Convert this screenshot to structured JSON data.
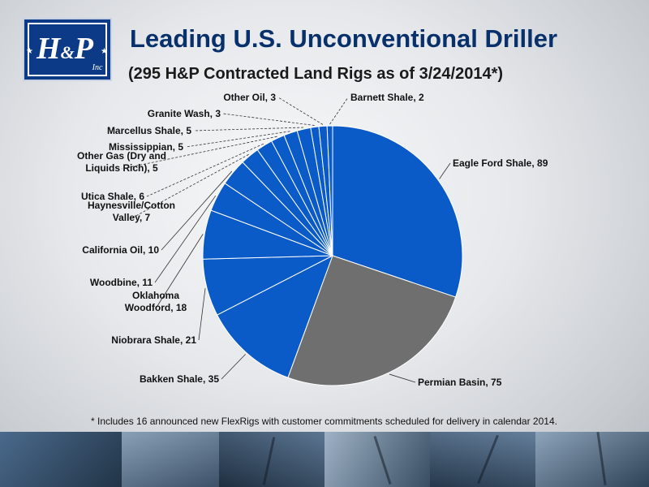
{
  "header": {
    "logo_text": "H&P Inc",
    "title": "Leading U.S. Unconventional Driller",
    "subtitle": "(295 H&P Contracted Land Rigs as of 3/24/2014*)"
  },
  "footnote": "* Includes 16 announced new FlexRigs with customer commitments scheduled for delivery in calendar 2014.",
  "colors": {
    "title": "#08306b",
    "pie_blue": "#0a5ac8",
    "pie_gray": "#6f6f6f",
    "slice_border": "#ffffff"
  },
  "chart_data": {
    "type": "pie",
    "title": "",
    "slices": [
      {
        "label": "Eagle Ford Shale, 89",
        "value": 89,
        "color": "#0a5ac8"
      },
      {
        "label": "Permian Basin, 75",
        "value": 75,
        "color": "#6f6f6f"
      },
      {
        "label": "Bakken Shale, 35",
        "value": 35,
        "color": "#0a5ac8"
      },
      {
        "label": "Niobrara Shale, 21",
        "value": 21,
        "color": "#0a5ac8"
      },
      {
        "label": "Oklahoma Woodford, 18",
        "value": 18,
        "color": "#0a5ac8"
      },
      {
        "label": "Woodbine, 11",
        "value": 11,
        "color": "#0a5ac8"
      },
      {
        "label": "California Oil, 10",
        "value": 10,
        "color": "#0a5ac8"
      },
      {
        "label": "Haynesville/Cotton Valley, 7",
        "value": 7,
        "color": "#0a5ac8"
      },
      {
        "label": "Utica Shale, 6",
        "value": 6,
        "color": "#0a5ac8"
      },
      {
        "label": "Other Gas (Dry and Liquids Rich), 5",
        "value": 5,
        "color": "#0a5ac8"
      },
      {
        "label": "Mississippian, 5",
        "value": 5,
        "color": "#0a5ac8"
      },
      {
        "label": "Marcellus Shale, 5",
        "value": 5,
        "color": "#0a5ac8"
      },
      {
        "label": "Granite Wash, 3",
        "value": 3,
        "color": "#0a5ac8"
      },
      {
        "label": "Other Oil, 3",
        "value": 3,
        "color": "#0a5ac8"
      },
      {
        "label": "Barnett Shale, 2",
        "value": 2,
        "color": "#0a5ac8"
      }
    ]
  }
}
